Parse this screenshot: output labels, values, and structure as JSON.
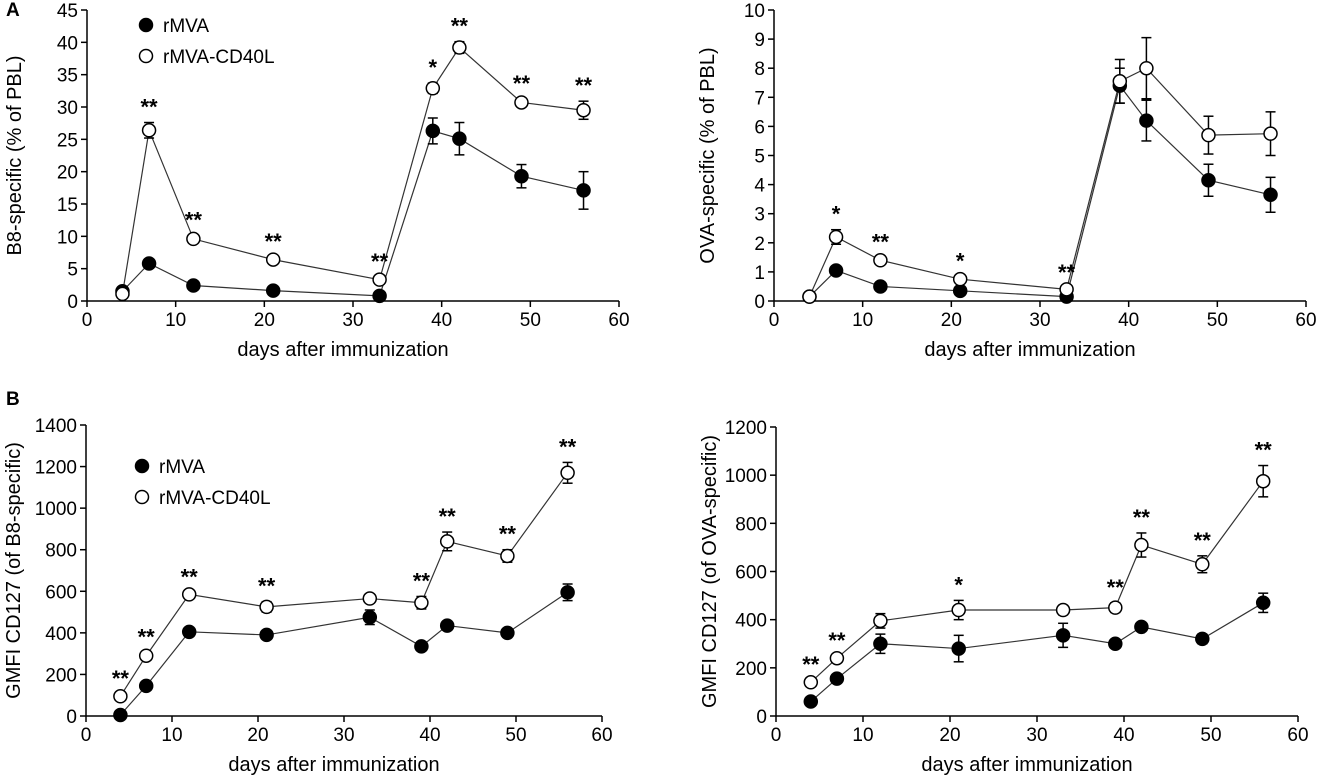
{
  "panel_letters": [
    "A",
    "B"
  ],
  "legend": {
    "series_filled": "rMVA",
    "series_open": "rMVA-CD40L"
  },
  "chart_data": [
    {
      "id": "A-left",
      "type": "line",
      "title": "",
      "xlabel": "days after immunization",
      "ylabel": "B8-specific (% of PBL)",
      "xlim": [
        0,
        60
      ],
      "ylim": [
        0,
        45
      ],
      "xticks": [
        0,
        10,
        20,
        30,
        40,
        50,
        60
      ],
      "yticks": [
        0,
        5,
        10,
        15,
        20,
        25,
        30,
        35,
        40,
        45
      ],
      "legend": true,
      "x": [
        4,
        7,
        12,
        21,
        33,
        39,
        42,
        49,
        56
      ],
      "series": [
        {
          "name": "rMVA",
          "marker": "filled",
          "values": [
            1.5,
            5.8,
            2.4,
            1.6,
            0.8,
            26.3,
            25.1,
            19.3,
            17.1
          ],
          "errors": [
            0.3,
            0.5,
            0.3,
            0.3,
            0.2,
            2.0,
            2.5,
            1.8,
            2.9
          ]
        },
        {
          "name": "rMVA-CD40L",
          "marker": "open",
          "values": [
            1.1,
            26.4,
            9.6,
            6.4,
            3.3,
            32.9,
            39.2,
            30.7,
            29.5
          ],
          "errors": [
            0.3,
            1.2,
            0.5,
            0.4,
            0.4,
            0.8,
            0.9,
            0.5,
            1.4
          ]
        }
      ],
      "annotations": [
        {
          "x": 7,
          "y": 26.4,
          "err": 1.2,
          "text": "**"
        },
        {
          "x": 12,
          "y": 9.6,
          "err": 0.5,
          "text": "**"
        },
        {
          "x": 21,
          "y": 6.4,
          "err": 0.4,
          "text": "**"
        },
        {
          "x": 33,
          "y": 3.3,
          "err": 0.4,
          "text": "**"
        },
        {
          "x": 39,
          "y": 32.9,
          "err": 0.8,
          "text": "*"
        },
        {
          "x": 42,
          "y": 39.2,
          "err": 0.9,
          "text": "**"
        },
        {
          "x": 49,
          "y": 30.7,
          "err": 0.5,
          "text": "**"
        },
        {
          "x": 56,
          "y": 29.5,
          "err": 1.4,
          "text": "**"
        }
      ]
    },
    {
      "id": "A-right",
      "type": "line",
      "title": "",
      "xlabel": "days after immunization",
      "ylabel": "OVA-specific (% of PBL)",
      "xlim": [
        0,
        60
      ],
      "ylim": [
        0,
        10
      ],
      "xticks": [
        0,
        10,
        20,
        30,
        40,
        50,
        60
      ],
      "yticks": [
        0,
        1,
        2,
        3,
        4,
        5,
        6,
        7,
        8,
        9,
        10
      ],
      "legend": false,
      "x": [
        4,
        7,
        12,
        21,
        33,
        39,
        42,
        49,
        56
      ],
      "series": [
        {
          "name": "rMVA",
          "marker": "filled",
          "values": [
            0.15,
            1.05,
            0.5,
            0.35,
            0.15,
            7.4,
            6.2,
            4.15,
            3.65
          ],
          "errors": [
            0.05,
            0.1,
            0.05,
            0.05,
            0.05,
            0.6,
            0.7,
            0.55,
            0.6
          ]
        },
        {
          "name": "rMVA-CD40L",
          "marker": "open",
          "values": [
            0.15,
            2.2,
            1.4,
            0.75,
            0.4,
            7.55,
            8.0,
            5.7,
            5.75
          ],
          "errors": [
            0.05,
            0.25,
            0.1,
            0.1,
            0.05,
            0.75,
            1.05,
            0.65,
            0.75
          ]
        }
      ],
      "annotations": [
        {
          "x": 7,
          "y": 2.2,
          "err": 0.25,
          "text": "*"
        },
        {
          "x": 12,
          "y": 1.4,
          "err": 0.1,
          "text": "**"
        },
        {
          "x": 21,
          "y": 0.75,
          "err": 0.1,
          "text": "*"
        },
        {
          "x": 33,
          "y": 0.4,
          "err": 0.05,
          "text": "**"
        }
      ]
    },
    {
      "id": "B-left",
      "type": "line",
      "title": "",
      "xlabel": "days after immunization",
      "ylabel": "GMFI CD127 (of B8-specific)",
      "xlim": [
        0,
        60
      ],
      "ylim": [
        0,
        1400
      ],
      "xticks": [
        0,
        10,
        20,
        30,
        40,
        50,
        60
      ],
      "yticks": [
        0,
        200,
        400,
        600,
        800,
        1000,
        1200,
        1400
      ],
      "legend": true,
      "x": [
        4,
        7,
        12,
        21,
        33,
        39,
        42,
        49,
        56
      ],
      "series": [
        {
          "name": "rMVA",
          "marker": "filled",
          "values": [
            5,
            145,
            405,
            390,
            475,
            335,
            435,
            400,
            595
          ],
          "errors": [
            5,
            10,
            10,
            10,
            35,
            15,
            10,
            10,
            40
          ]
        },
        {
          "name": "rMVA-CD40L",
          "marker": "open",
          "values": [
            95,
            290,
            585,
            525,
            565,
            545,
            840,
            770,
            1170
          ],
          "errors": [
            10,
            15,
            10,
            25,
            10,
            30,
            45,
            30,
            50
          ]
        }
      ],
      "annotations": [
        {
          "x": 4,
          "y": 95,
          "err": 10,
          "text": "**"
        },
        {
          "x": 7,
          "y": 290,
          "err": 15,
          "text": "**"
        },
        {
          "x": 12,
          "y": 585,
          "err": 10,
          "text": "**"
        },
        {
          "x": 21,
          "y": 525,
          "err": 25,
          "text": "**"
        },
        {
          "x": 39,
          "y": 545,
          "err": 30,
          "text": "**"
        },
        {
          "x": 42,
          "y": 840,
          "err": 45,
          "text": "**"
        },
        {
          "x": 49,
          "y": 770,
          "err": 30,
          "text": "**"
        },
        {
          "x": 56,
          "y": 1170,
          "err": 50,
          "text": "**"
        }
      ]
    },
    {
      "id": "B-right",
      "type": "line",
      "title": "",
      "xlabel": "days after immunization",
      "ylabel": "GMFI CD127 (of OVA-specific)",
      "xlim": [
        0,
        60
      ],
      "ylim": [
        0,
        1200
      ],
      "xticks": [
        0,
        10,
        20,
        30,
        40,
        50,
        60
      ],
      "yticks": [
        0,
        200,
        400,
        600,
        800,
        1000,
        1200
      ],
      "legend": false,
      "x": [
        4,
        7,
        12,
        21,
        33,
        39,
        42,
        49,
        56
      ],
      "series": [
        {
          "name": "rMVA",
          "marker": "filled",
          "values": [
            60,
            155,
            300,
            280,
            335,
            300,
            370,
            320,
            470
          ],
          "errors": [
            5,
            10,
            40,
            55,
            50,
            10,
            10,
            20,
            40
          ]
        },
        {
          "name": "rMVA-CD40L",
          "marker": "open",
          "values": [
            140,
            240,
            395,
            440,
            440,
            450,
            710,
            630,
            975
          ],
          "errors": [
            10,
            10,
            30,
            40,
            20,
            20,
            50,
            35,
            65
          ]
        }
      ],
      "annotations": [
        {
          "x": 4,
          "y": 140,
          "err": 10,
          "text": "**"
        },
        {
          "x": 7,
          "y": 240,
          "err": 10,
          "text": "**"
        },
        {
          "x": 21,
          "y": 440,
          "err": 40,
          "text": "*"
        },
        {
          "x": 39,
          "y": 450,
          "err": 20,
          "text": "**"
        },
        {
          "x": 42,
          "y": 710,
          "err": 50,
          "text": "**"
        },
        {
          "x": 49,
          "y": 630,
          "err": 35,
          "text": "**"
        },
        {
          "x": 56,
          "y": 975,
          "err": 65,
          "text": "**"
        }
      ]
    }
  ]
}
